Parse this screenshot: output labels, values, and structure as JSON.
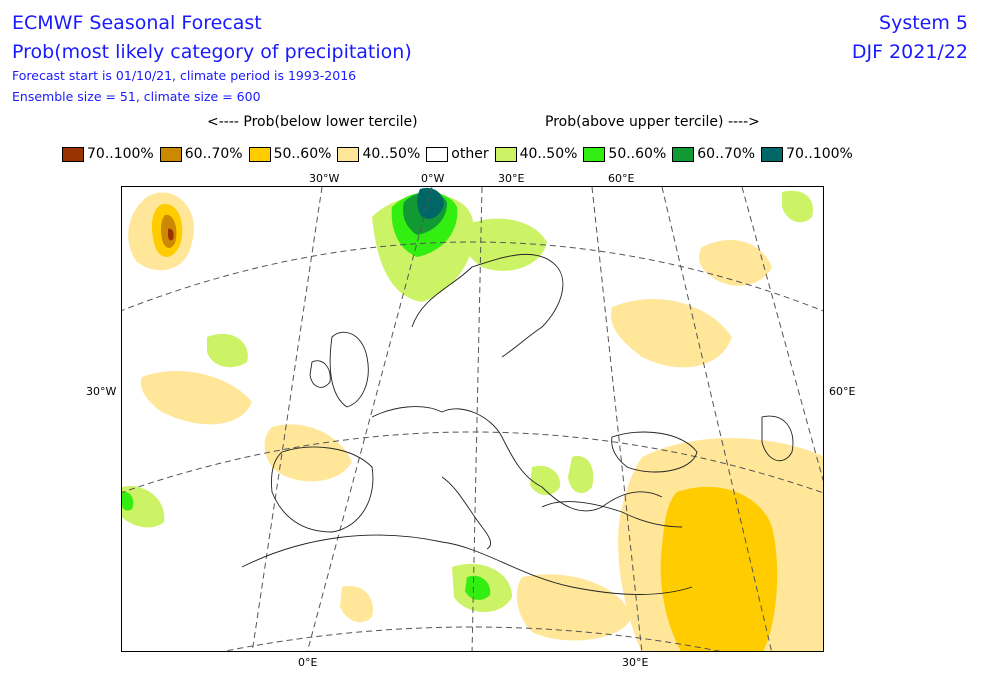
{
  "header": {
    "title": "ECMWF Seasonal Forecast",
    "subtitle": "Prob(most likely category of precipitation)",
    "forecast_info": "Forecast start is 01/10/21, climate period is 1993-2016",
    "ensemble_info": "Ensemble size = 51, climate size = 600",
    "system": "System 5",
    "season": "DJF 2021/22"
  },
  "legend": {
    "below_header": "<---- Prob(below lower tercile)",
    "above_header": "Prob(above upper tercile) ---->",
    "items": [
      {
        "label": "70..100%",
        "color": "#993300"
      },
      {
        "label": "60..70%",
        "color": "#cc8800"
      },
      {
        "label": "50..60%",
        "color": "#ffcc00"
      },
      {
        "label": "40..50%",
        "color": "#ffe699"
      },
      {
        "label": "other",
        "color": "#ffffff"
      },
      {
        "label": "40..50%",
        "color": "#ccf266"
      },
      {
        "label": "50..60%",
        "color": "#33ee11"
      },
      {
        "label": "60..70%",
        "color": "#119933"
      },
      {
        "label": "70..100%",
        "color": "#006666"
      }
    ]
  },
  "map": {
    "top_labels": [
      "30°W",
      "0°W",
      "30°E",
      "60°E"
    ],
    "left_label": "30°W",
    "right_label": "60°E",
    "bottom_labels": [
      "0°E",
      "30°E"
    ]
  }
}
